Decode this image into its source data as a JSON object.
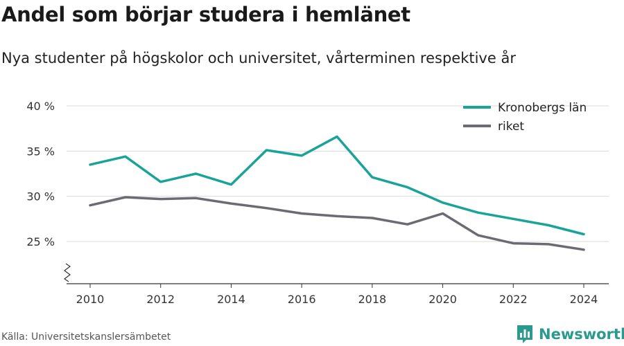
{
  "title": "Andel som börjar studera i hemlänet",
  "subtitle": "Nya studenter på högskolor och universitet, vårterminen respektive år",
  "source": "Källa: Universitetskanslersämbetet",
  "brand": {
    "name": "Newsworthy",
    "icon": "bar-chart-logo-icon",
    "color": "#2a9a8f"
  },
  "chart_data": {
    "type": "line",
    "x": [
      2010,
      2011,
      2012,
      2013,
      2014,
      2015,
      2016,
      2017,
      2018,
      2019,
      2020,
      2021,
      2022,
      2023,
      2024
    ],
    "x_ticks": [
      2010,
      2012,
      2014,
      2016,
      2018,
      2020,
      2022,
      2024
    ],
    "y_ticks": [
      25,
      30,
      35,
      40
    ],
    "y_tick_labels": [
      "25 %",
      "30 %",
      "35 %",
      "40 %"
    ],
    "ylim": [
      20.5,
      40
    ],
    "y_axis_break": true,
    "grid": true,
    "legend_position": "top-right",
    "series": [
      {
        "name": "Kronobergs län",
        "color": "#1aa399",
        "values": [
          33.5,
          34.4,
          31.6,
          32.5,
          31.3,
          35.1,
          34.5,
          36.6,
          32.1,
          31.0,
          29.3,
          28.2,
          27.5,
          26.8,
          25.8
        ]
      },
      {
        "name": "riket",
        "color": "#6b6b73",
        "values": [
          29.0,
          29.9,
          29.7,
          29.8,
          29.2,
          28.7,
          28.1,
          27.8,
          27.6,
          26.9,
          28.1,
          25.7,
          24.8,
          24.7,
          24.1
        ]
      }
    ]
  }
}
